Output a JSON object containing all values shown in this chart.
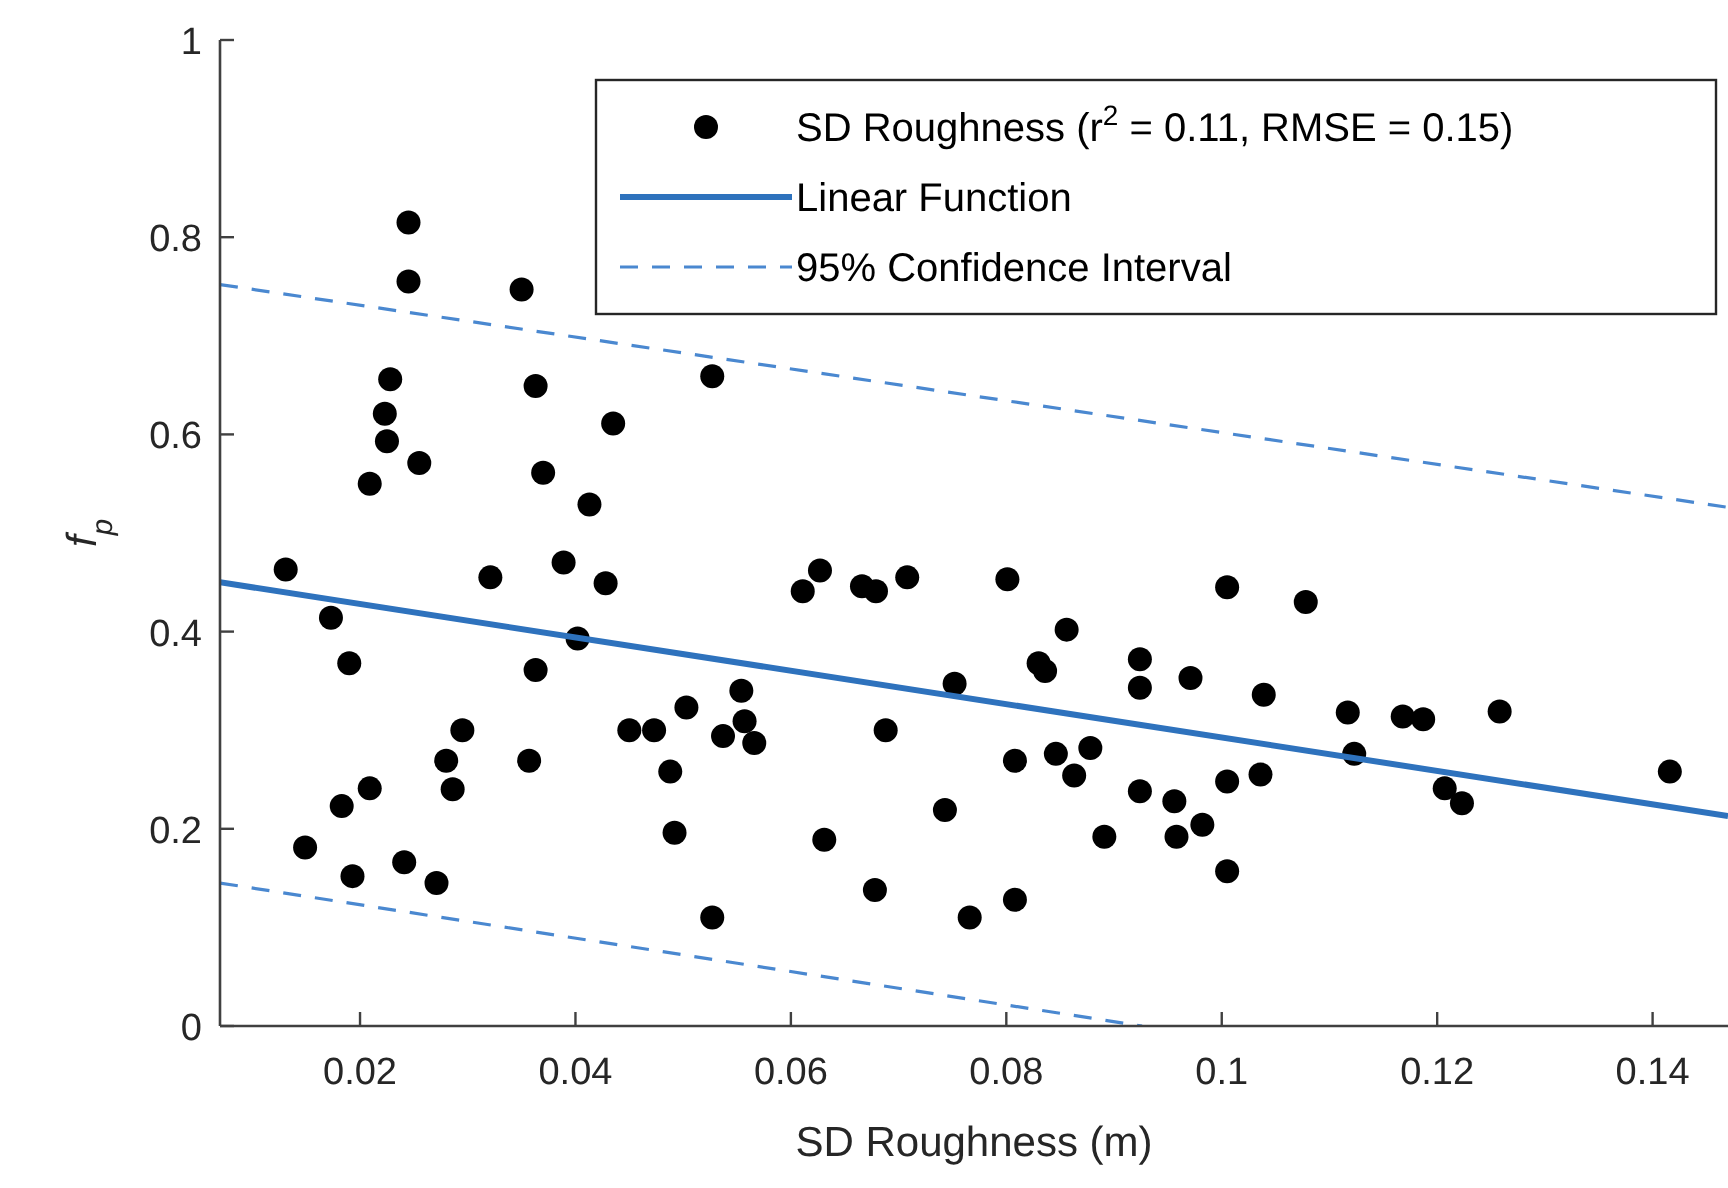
{
  "chart_data": {
    "type": "scatter",
    "xlabel": "SD Roughness (m)",
    "ylabel": "f$_{p}$",
    "xlim": [
      0.007,
      0.147
    ],
    "ylim": [
      0,
      1
    ],
    "xticks": [
      0.02,
      0.04,
      0.06,
      0.08,
      {
        "value": 0.1,
        "label": "0.1"
      },
      0.12,
      0.14
    ],
    "yticks": [
      0,
      0.2,
      0.4,
      0.6,
      0.8,
      1
    ],
    "grid": false,
    "legend": "top right",
    "series": [
      {
        "name": "SD Roughness (r$^{2}$ = 0.11, RMSE = 0.15)",
        "color": "#000000",
        "marker": "circle",
        "x": [
          0.0245,
          0.0245,
          0.035,
          0.0527,
          0.0228,
          0.0363,
          0.0223,
          0.0225,
          0.0435,
          0.0255,
          0.037,
          0.0209,
          0.0413,
          0.0131,
          0.0321,
          0.0389,
          0.0428,
          0.0173,
          0.0402,
          0.019,
          0.0363,
          0.0503,
          0.0554,
          0.0149,
          0.0183,
          0.0209,
          0.0193,
          0.0241,
          0.0271,
          0.028,
          0.0286,
          0.0295,
          0.0357,
          0.045,
          0.0473,
          0.0488,
          0.0492,
          0.0527,
          0.0537,
          0.0557,
          0.0566,
          0.0627,
          0.0611,
          0.0666,
          0.0679,
          0.0708,
          0.0801,
          0.0856,
          0.083,
          0.0836,
          0.0924,
          0.0924,
          0.0971,
          0.1005,
          0.0752,
          0.0688,
          0.0808,
          0.0846,
          0.0878,
          0.0863,
          0.0924,
          0.0956,
          0.1005,
          0.0743,
          0.0631,
          0.0891,
          0.0958,
          0.0982,
          0.1005,
          0.0678,
          0.0808,
          0.0766,
          0.1078,
          0.1039,
          0.1117,
          0.1168,
          0.1187,
          0.1258,
          0.1123,
          0.1036,
          0.1207,
          0.1223,
          0.1416
        ],
        "values": [
          0.815,
          0.755,
          0.747,
          0.659,
          0.656,
          0.649,
          0.621,
          0.593,
          0.611,
          0.571,
          0.561,
          0.55,
          0.529,
          0.463,
          0.455,
          0.47,
          0.449,
          0.414,
          0.393,
          0.368,
          0.361,
          0.323,
          0.34,
          0.181,
          0.223,
          0.241,
          0.152,
          0.166,
          0.145,
          0.269,
          0.24,
          0.3,
          0.269,
          0.3,
          0.3,
          0.258,
          0.196,
          0.11,
          0.294,
          0.309,
          0.287,
          0.462,
          0.441,
          0.446,
          0.441,
          0.455,
          0.453,
          0.402,
          0.368,
          0.36,
          0.372,
          0.343,
          0.353,
          0.445,
          0.347,
          0.3,
          0.269,
          0.276,
          0.282,
          0.254,
          0.238,
          0.228,
          0.248,
          0.219,
          0.189,
          0.192,
          0.192,
          0.204,
          0.157,
          0.138,
          0.128,
          0.11,
          0.43,
          0.336,
          0.318,
          0.314,
          0.311,
          0.319,
          0.276,
          0.255,
          0.241,
          0.226,
          0.258
        ]
      },
      {
        "type": "line",
        "name": "Linear Function",
        "color": "#2e72bd",
        "line_style": "solid",
        "x": [
          0.007,
          0.147
        ],
        "values": [
          0.45,
          0.213
        ]
      },
      {
        "type": "line",
        "name": "95% Confidence Interval",
        "color": "#4a88d0",
        "line_style": "dashed",
        "x": [
          0.007,
          0.147
        ],
        "values": [
          0.752,
          0.526
        ]
      },
      {
        "type": "line",
        "color": "#4a88d0",
        "line_style": "dashed",
        "x": [
          0.007,
          0.0926
        ],
        "values": [
          0.145,
          0
        ]
      }
    ]
  }
}
